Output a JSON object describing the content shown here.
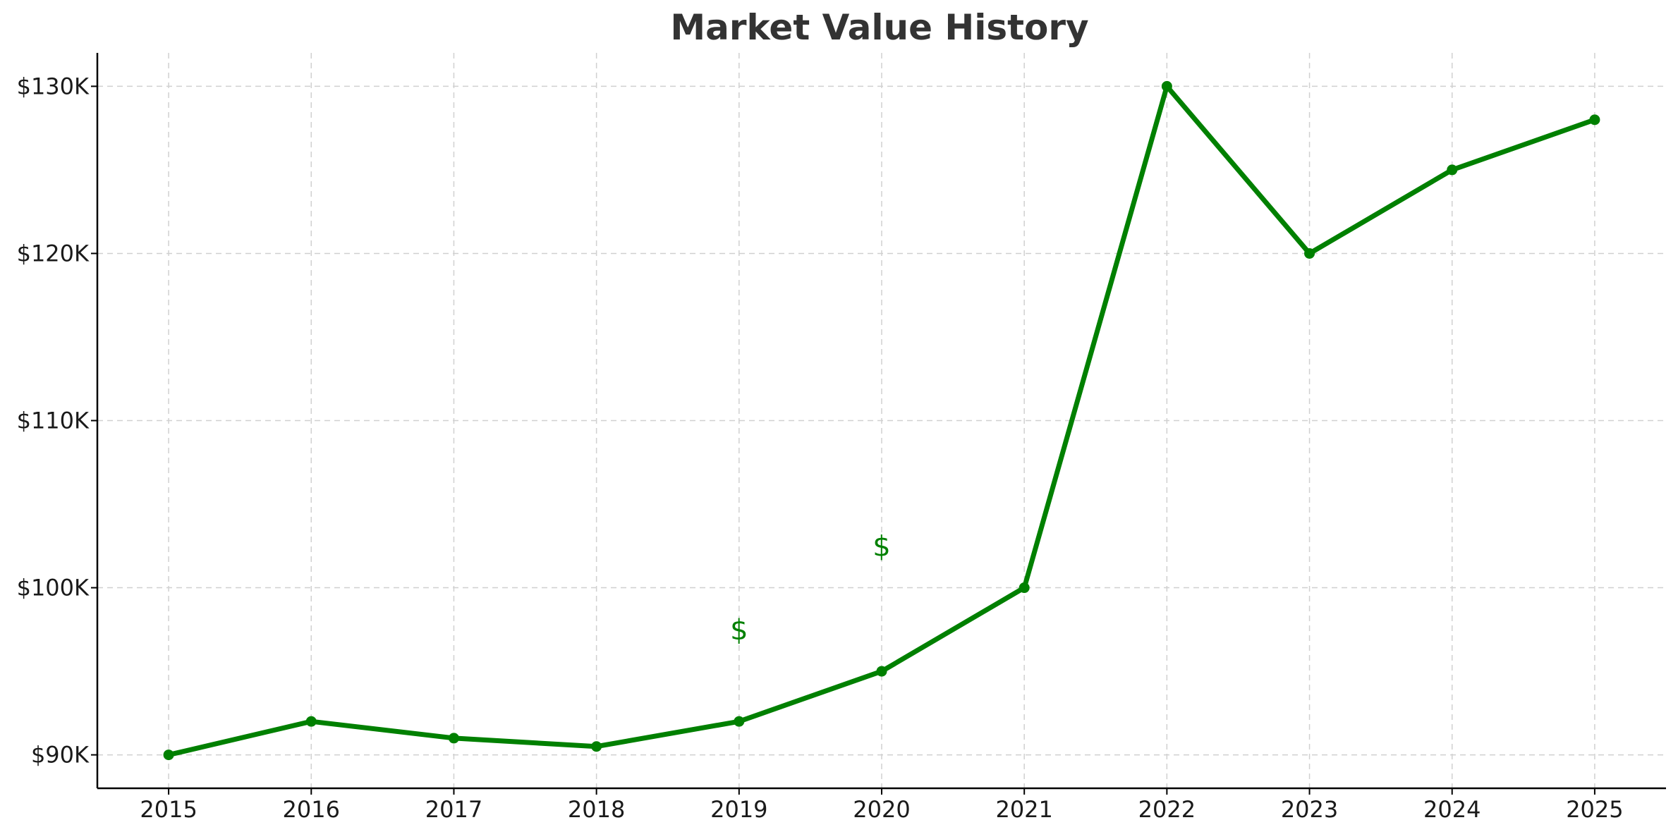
{
  "chart_data": {
    "type": "line",
    "title": "Market Value History",
    "xlabel": "",
    "ylabel": "",
    "x": [
      2015,
      2016,
      2017,
      2018,
      2019,
      2020,
      2021,
      2022,
      2023,
      2024,
      2025
    ],
    "series": [
      {
        "values": [
          90000,
          92000,
          91000,
          90500,
          92000,
          95000,
          100000,
          130000,
          120000,
          125000,
          128000
        ],
        "color": "#008000",
        "marker": "circle"
      }
    ],
    "x_ticks": [
      2015,
      2016,
      2017,
      2018,
      2019,
      2020,
      2021,
      2022,
      2023,
      2024,
      2025
    ],
    "x_tick_labels": [
      "2015",
      "2016",
      "2017",
      "2018",
      "2019",
      "2020",
      "2021",
      "2022",
      "2023",
      "2024",
      "2025"
    ],
    "y_ticks": [
      90000,
      100000,
      110000,
      120000,
      130000
    ],
    "y_tick_labels": [
      "$90K",
      "$100K",
      "$110K",
      "$120K",
      "$130K"
    ],
    "xlim": [
      2014.5,
      2025.5
    ],
    "ylim": [
      88000,
      132000
    ],
    "grid": true,
    "grid_style": "dashed",
    "annotations": [
      {
        "text": "$",
        "x": 2019,
        "y": 97500,
        "color": "#008000"
      },
      {
        "text": "$",
        "x": 2020,
        "y": 102500,
        "color": "#008000"
      }
    ]
  }
}
